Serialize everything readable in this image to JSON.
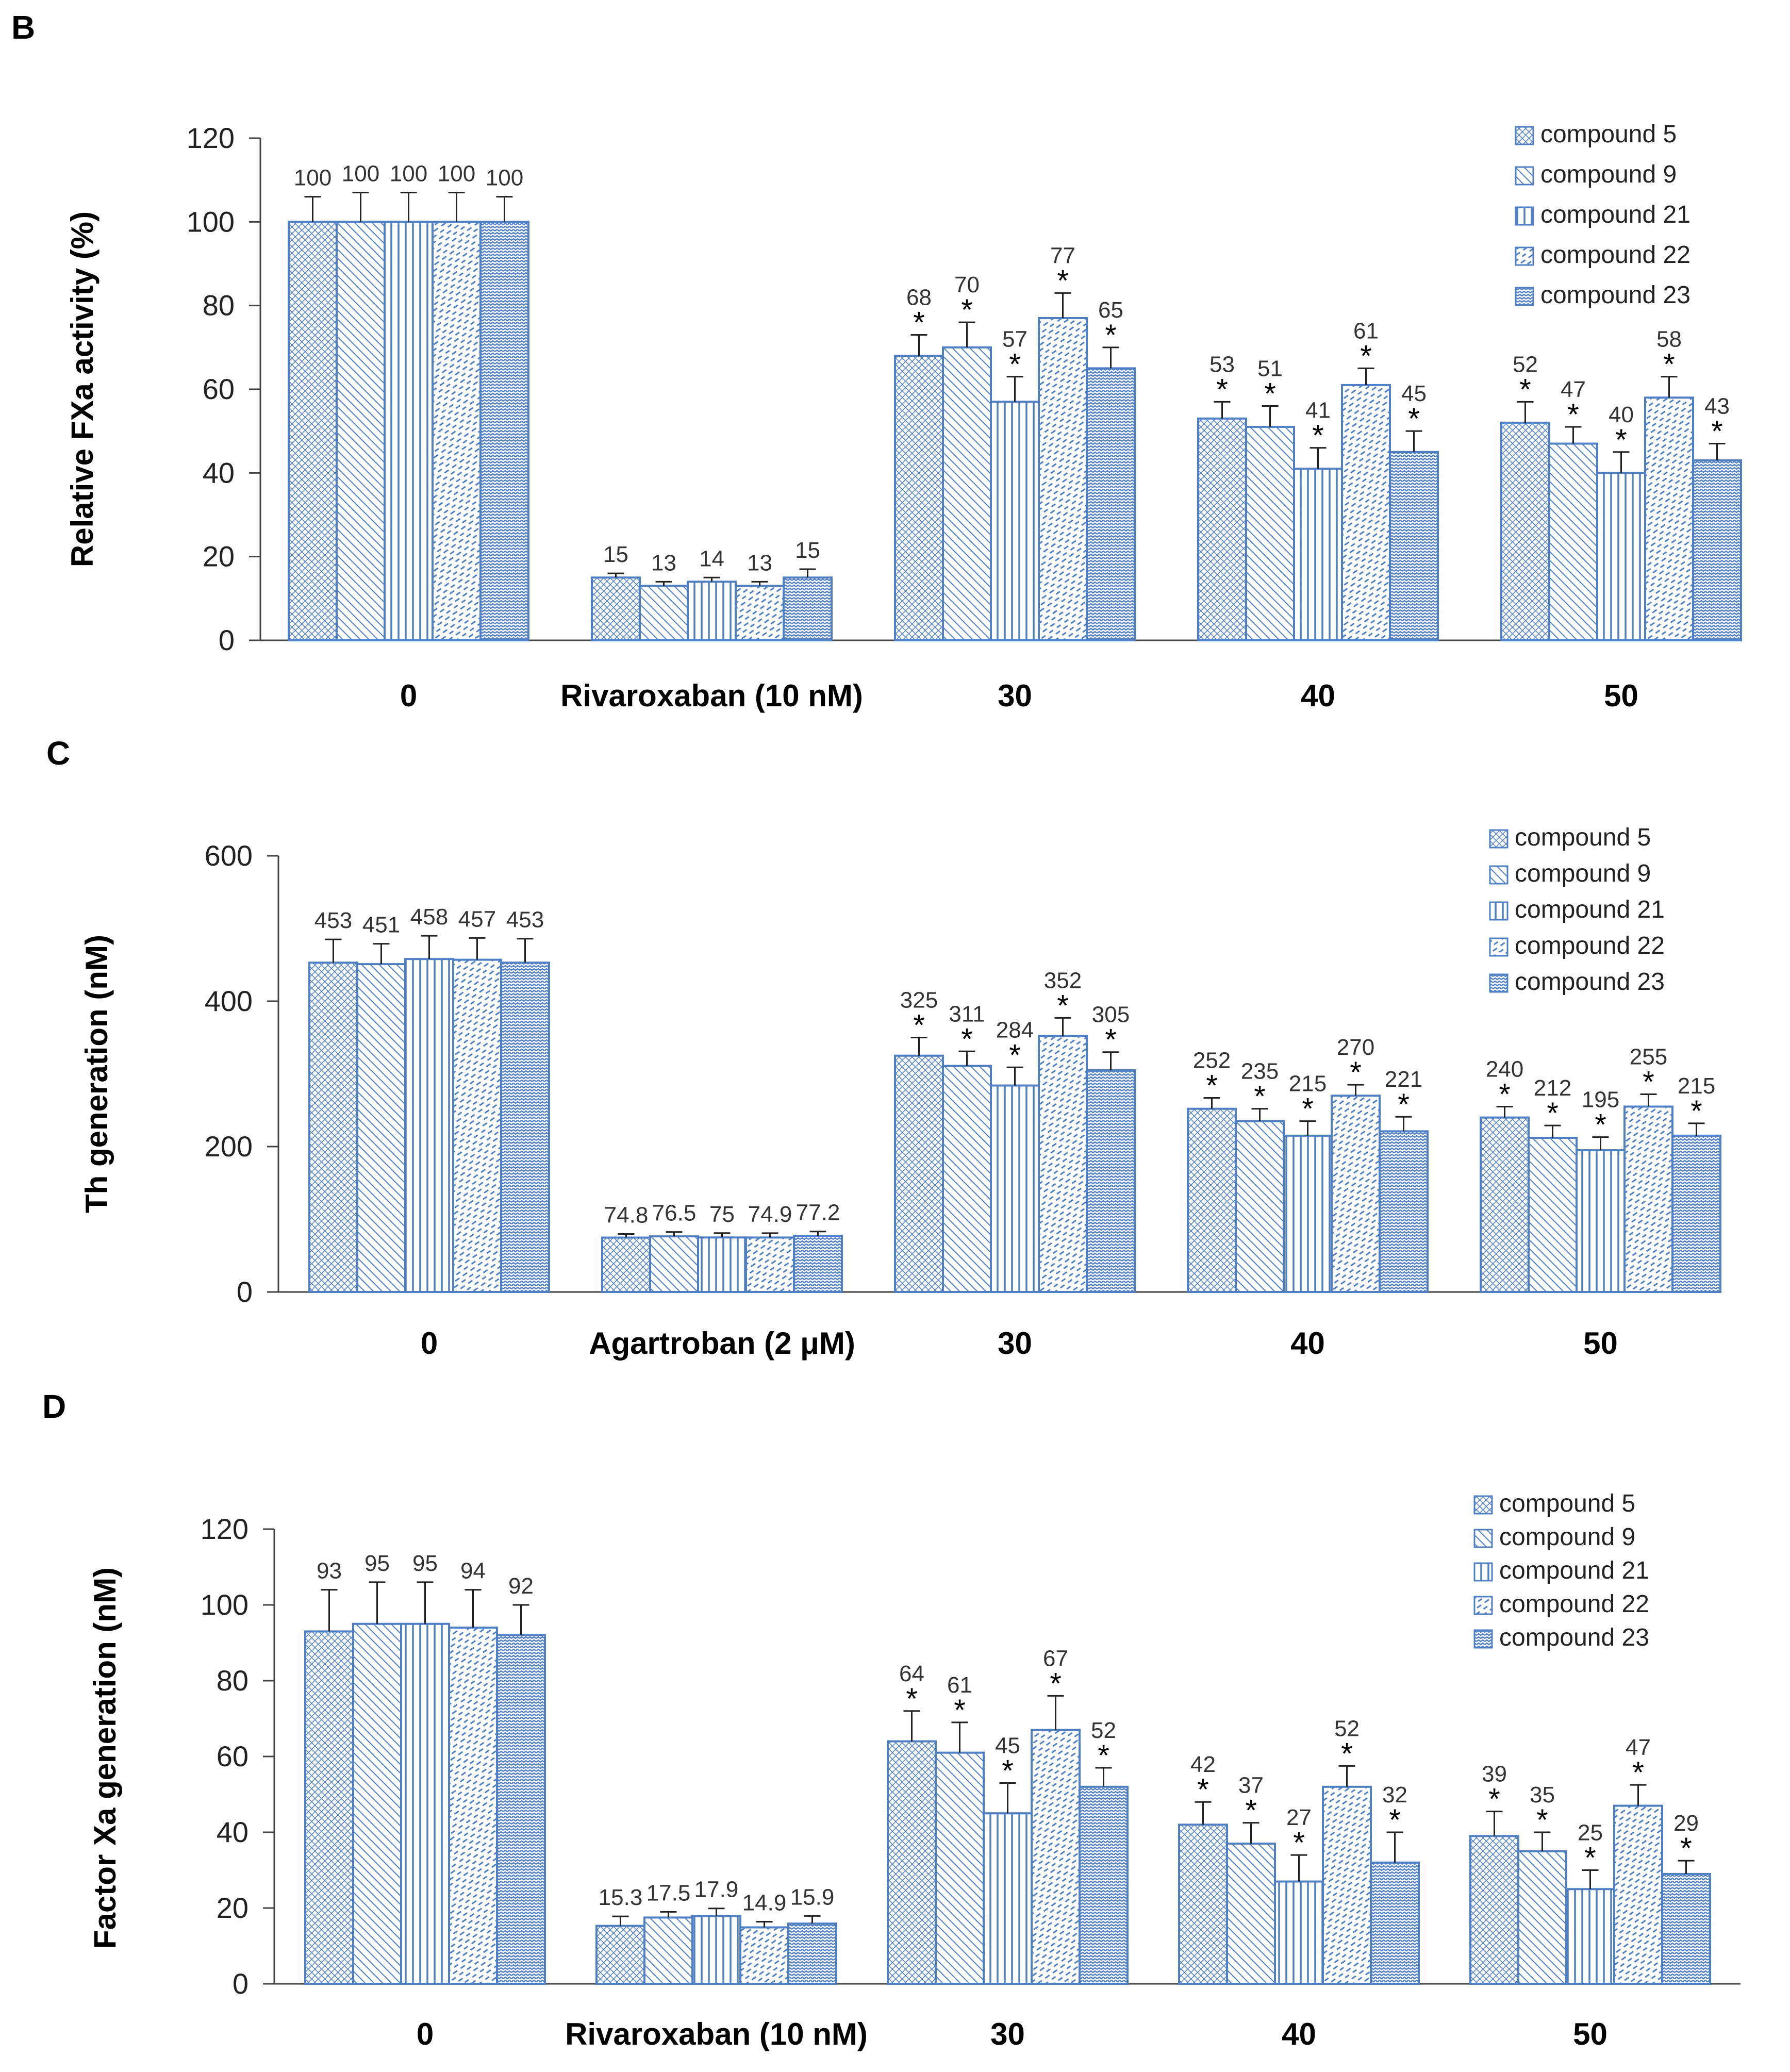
{
  "colors": {
    "bar_stroke": "#4f7fc4",
    "bar_fill": "#ffffff",
    "pattern": "#4f7fc4",
    "axis": "#444444"
  },
  "chart_data": [
    {
      "panel_label": "B",
      "type": "bar",
      "ylabel": "Relative FXa activity (%)",
      "ylim": [
        0,
        120
      ],
      "yticks": [
        "0",
        "20",
        "40",
        "60",
        "80",
        "100",
        "120"
      ],
      "categories": [
        "0",
        "Rivaroxaban (10 nM)",
        "30",
        "40",
        "50"
      ],
      "legend": [
        "compound 5",
        "compound 9",
        "compound 21",
        "compound 22",
        "compound 23"
      ],
      "legend_position": "top-right",
      "series": [
        {
          "name": "compound 5",
          "values": [
            100,
            15,
            68,
            53,
            52
          ],
          "errors": [
            6,
            1,
            5,
            4,
            5
          ],
          "labels": [
            "100",
            "15",
            "68",
            "53",
            "52"
          ],
          "stars": [
            false,
            false,
            true,
            true,
            true
          ]
        },
        {
          "name": "compound 9",
          "values": [
            100,
            13,
            70,
            51,
            47
          ],
          "errors": [
            7,
            1,
            6,
            5,
            4
          ],
          "labels": [
            "100",
            "13",
            "70",
            "51",
            "47"
          ],
          "stars": [
            false,
            false,
            true,
            true,
            true
          ]
        },
        {
          "name": "compound 21",
          "values": [
            100,
            14,
            57,
            41,
            40
          ],
          "errors": [
            7,
            1,
            6,
            5,
            5
          ],
          "labels": [
            "100",
            "14",
            "57",
            "41",
            "40"
          ],
          "stars": [
            false,
            false,
            true,
            true,
            true
          ]
        },
        {
          "name": "compound 22",
          "values": [
            100,
            13,
            77,
            61,
            58
          ],
          "errors": [
            7,
            1,
            6,
            4,
            5
          ],
          "labels": [
            "100",
            "13",
            "77",
            "61",
            "58"
          ],
          "stars": [
            false,
            false,
            true,
            true,
            true
          ]
        },
        {
          "name": "compound 23",
          "values": [
            100,
            15,
            65,
            45,
            43
          ],
          "errors": [
            6,
            2,
            5,
            5,
            4
          ],
          "labels": [
            "100",
            "15",
            "65",
            "45",
            "43"
          ],
          "stars": [
            false,
            false,
            true,
            true,
            true
          ]
        }
      ]
    },
    {
      "panel_label": "C",
      "type": "bar",
      "ylabel": "Th generation (nM)",
      "ylim": [
        0,
        600
      ],
      "yticks": [
        "0",
        "200",
        "400",
        "600"
      ],
      "categories": [
        "0",
        "Agartroban (2 μM)",
        "30",
        "40",
        "50"
      ],
      "legend": [
        "compound 5",
        "compound 9",
        "compound 21",
        "compound 22",
        "compound 23"
      ],
      "legend_position": "top-right",
      "series": [
        {
          "name": "compound 5",
          "values": [
            453,
            74.8,
            325,
            252,
            240
          ],
          "errors": [
            32,
            5,
            25,
            15,
            15
          ],
          "labels": [
            "453",
            "74.8",
            "325",
            "252",
            "240"
          ],
          "stars": [
            false,
            false,
            true,
            true,
            true
          ]
        },
        {
          "name": "compound 9",
          "values": [
            451,
            76.5,
            311,
            235,
            212
          ],
          "errors": [
            28,
            6,
            20,
            17,
            17
          ],
          "labels": [
            "451",
            "76.5",
            "311",
            "235",
            "212"
          ],
          "stars": [
            false,
            false,
            true,
            true,
            true
          ]
        },
        {
          "name": "compound 21",
          "values": [
            458,
            75,
            284,
            215,
            195
          ],
          "errors": [
            32,
            6,
            25,
            20,
            18
          ],
          "labels": [
            "458",
            "75",
            "284",
            "215",
            "195"
          ],
          "stars": [
            false,
            false,
            true,
            true,
            true
          ]
        },
        {
          "name": "compound 22",
          "values": [
            457,
            74.9,
            352,
            270,
            255
          ],
          "errors": [
            30,
            6,
            25,
            15,
            17
          ],
          "labels": [
            "457",
            "74.9",
            "352",
            "270",
            "255"
          ],
          "stars": [
            false,
            false,
            true,
            true,
            true
          ]
        },
        {
          "name": "compound 23",
          "values": [
            453,
            77.2,
            305,
            221,
            215
          ],
          "errors": [
            33,
            6,
            25,
            20,
            17
          ],
          "labels": [
            "453",
            "77.2",
            "305",
            "221",
            "215"
          ],
          "stars": [
            false,
            false,
            true,
            true,
            true
          ]
        }
      ]
    },
    {
      "panel_label": "D",
      "type": "bar",
      "ylabel": "Factor Xa generation (nM)",
      "ylim": [
        0,
        120
      ],
      "yticks": [
        "0",
        "20",
        "40",
        "60",
        "80",
        "100",
        "120"
      ],
      "categories": [
        "0",
        "Rivaroxaban (10 nM)",
        "30",
        "40",
        "50"
      ],
      "legend": [
        "compound 5",
        "compound 9",
        "compound 21",
        "compound 22",
        "compound 23"
      ],
      "legend_position": "top-right",
      "series": [
        {
          "name": "compound 5",
          "values": [
            93,
            15.3,
            64,
            42,
            39
          ],
          "errors": [
            11,
            2.5,
            8,
            6,
            6.5
          ],
          "labels": [
            "93",
            "15.3",
            "64",
            "42",
            "39"
          ],
          "stars": [
            false,
            false,
            true,
            true,
            true
          ]
        },
        {
          "name": "compound 9",
          "values": [
            95,
            17.5,
            61,
            37,
            35
          ],
          "errors": [
            11,
            1.5,
            8,
            5.5,
            5
          ],
          "labels": [
            "95",
            "17.5",
            "61",
            "37",
            "35"
          ],
          "stars": [
            false,
            false,
            true,
            true,
            true
          ]
        },
        {
          "name": "compound 21",
          "values": [
            95,
            17.9,
            45,
            27,
            25
          ],
          "errors": [
            11,
            2,
            8,
            7,
            5
          ],
          "labels": [
            "95",
            "17.9",
            "45",
            "27",
            "25"
          ],
          "stars": [
            false,
            false,
            true,
            true,
            true
          ]
        },
        {
          "name": "compound 22",
          "values": [
            94,
            14.9,
            67,
            52,
            47
          ],
          "errors": [
            10,
            1.5,
            9,
            5.5,
            5.5
          ],
          "labels": [
            "94",
            "14.9",
            "67",
            "52",
            "47"
          ],
          "stars": [
            false,
            false,
            true,
            true,
            true
          ]
        },
        {
          "name": "compound 23",
          "values": [
            92,
            15.9,
            52,
            32,
            29
          ],
          "errors": [
            8,
            2,
            5,
            8,
            3.5
          ],
          "labels": [
            "92",
            "15.9",
            "52",
            "32",
            "29"
          ],
          "stars": [
            false,
            false,
            true,
            true,
            true
          ]
        }
      ]
    }
  ]
}
